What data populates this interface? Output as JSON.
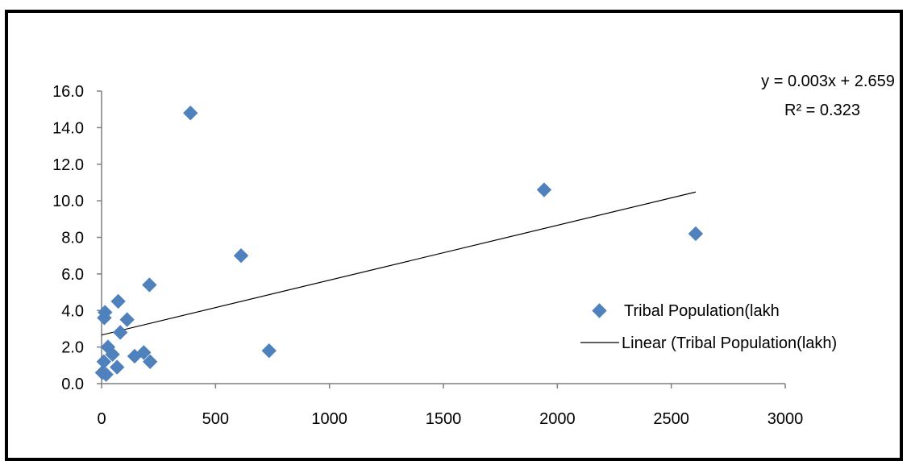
{
  "chart_data": {
    "type": "scatter",
    "title": "",
    "xlabel": "",
    "ylabel": "",
    "xlim": [
      0,
      3000
    ],
    "ylim": [
      0,
      16
    ],
    "x_ticks": [
      "0",
      "500",
      "1000",
      "1500",
      "2000",
      "2500",
      "3000"
    ],
    "y_ticks": [
      "0.0",
      "2.0",
      "4.0",
      "6.0",
      "8.0",
      "10.0",
      "12.0",
      "14.0",
      "16.0"
    ],
    "grid": false,
    "legend_position": "right",
    "marker_color": "#4F81BD",
    "trendline_color": "#000000",
    "series": [
      {
        "name": "Tribal Population(lakh",
        "points": [
          {
            "x": 3,
            "y": 0.6
          },
          {
            "x": 10,
            "y": 1.2
          },
          {
            "x": 12,
            "y": 3.6
          },
          {
            "x": 15,
            "y": 3.9
          },
          {
            "x": 20,
            "y": 0.5
          },
          {
            "x": 28,
            "y": 2.0
          },
          {
            "x": 48,
            "y": 1.6
          },
          {
            "x": 68,
            "y": 0.9
          },
          {
            "x": 73,
            "y": 4.5
          },
          {
            "x": 82,
            "y": 2.8
          },
          {
            "x": 112,
            "y": 3.5
          },
          {
            "x": 145,
            "y": 1.5
          },
          {
            "x": 185,
            "y": 1.7
          },
          {
            "x": 210,
            "y": 5.4
          },
          {
            "x": 213,
            "y": 1.2
          },
          {
            "x": 390,
            "y": 14.8
          },
          {
            "x": 612,
            "y": 7.0
          },
          {
            "x": 735,
            "y": 1.8
          },
          {
            "x": 1942,
            "y": 10.6
          },
          {
            "x": 2607,
            "y": 8.2
          }
        ]
      }
    ],
    "trendline": {
      "name": "Linear (Tribal Population(lakh)",
      "slope": 0.003,
      "intercept": 2.659,
      "x_range": [
        0,
        2607
      ],
      "equation": "y = 0.003x + 2.659",
      "r_squared": "R² = 0.323"
    }
  }
}
